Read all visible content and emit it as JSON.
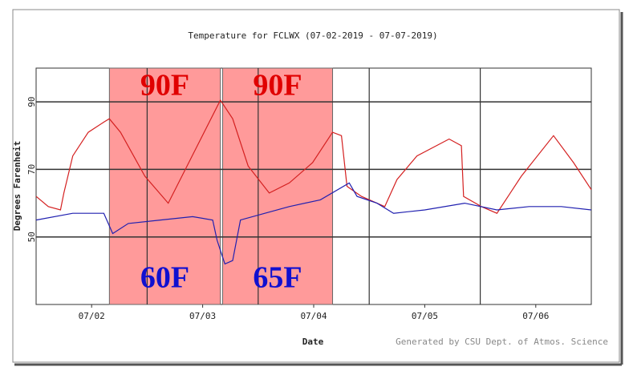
{
  "chart_data": {
    "type": "line",
    "title": "Temperature for FCLWX (07-02-2019 - 07-07-2019)",
    "x_label": "Date",
    "y_label": "Degrees Farenheit",
    "footer": "Generated by CSU Dept. of Atmos. Science",
    "xlim": [
      2,
      7
    ],
    "xticks": [
      {
        "value": 2.5,
        "label": "07/02"
      },
      {
        "value": 3.5,
        "label": "07/03"
      },
      {
        "value": 4.5,
        "label": "07/04"
      },
      {
        "value": 5.5,
        "label": "07/05"
      },
      {
        "value": 6.5,
        "label": "07/06"
      }
    ],
    "xgrid": [
      3,
      4,
      5,
      6
    ],
    "ylim": [
      30,
      100
    ],
    "yticks": [
      50,
      70,
      90
    ],
    "grid": true,
    "highlights": [
      {
        "start": 2.66,
        "end": 3.66,
        "color": "#ff9a9a",
        "top_label": "90F",
        "bottom_label": "60F"
      },
      {
        "start": 3.68,
        "end": 4.67,
        "color": "#ff9a9a",
        "top_label": "90F",
        "bottom_label": "65F"
      }
    ],
    "top_label_color": "#e00000",
    "bottom_label_color": "#1010d0",
    "series": [
      {
        "color": "#d42020",
        "x": [
          2.0,
          2.11,
          2.22,
          2.25,
          2.33,
          2.47,
          2.61,
          2.66,
          2.76,
          2.98,
          3.19,
          3.66,
          3.77,
          3.91,
          4.1,
          4.28,
          4.49,
          4.67,
          4.75,
          4.8,
          4.93,
          5.14,
          5.25,
          5.43,
          5.72,
          5.83,
          5.85,
          6.01,
          6.15,
          6.37,
          6.66,
          6.84,
          7.0
        ],
        "values": [
          62,
          59,
          58,
          63,
          74,
          81,
          84,
          85,
          81,
          68,
          60,
          90.5,
          85,
          71,
          63,
          66,
          72,
          81,
          80,
          65,
          62,
          59,
          67,
          74,
          79,
          77,
          62,
          59,
          57,
          68,
          80,
          72,
          64
        ]
      },
      {
        "color": "#2020b0",
        "x": [
          2.0,
          2.33,
          2.61,
          2.69,
          2.83,
          3.12,
          3.41,
          3.59,
          3.63,
          3.7,
          3.77,
          3.84,
          4.06,
          4.28,
          4.56,
          4.82,
          4.89,
          5.07,
          5.22,
          5.5,
          5.86,
          6.15,
          6.44,
          6.73,
          7.0
        ],
        "values": [
          55,
          57,
          57,
          51,
          54,
          55,
          56,
          55,
          49,
          42,
          43,
          55,
          57,
          59,
          61,
          66,
          62,
          60,
          57,
          58,
          60,
          58,
          59,
          59,
          58
        ]
      }
    ]
  }
}
